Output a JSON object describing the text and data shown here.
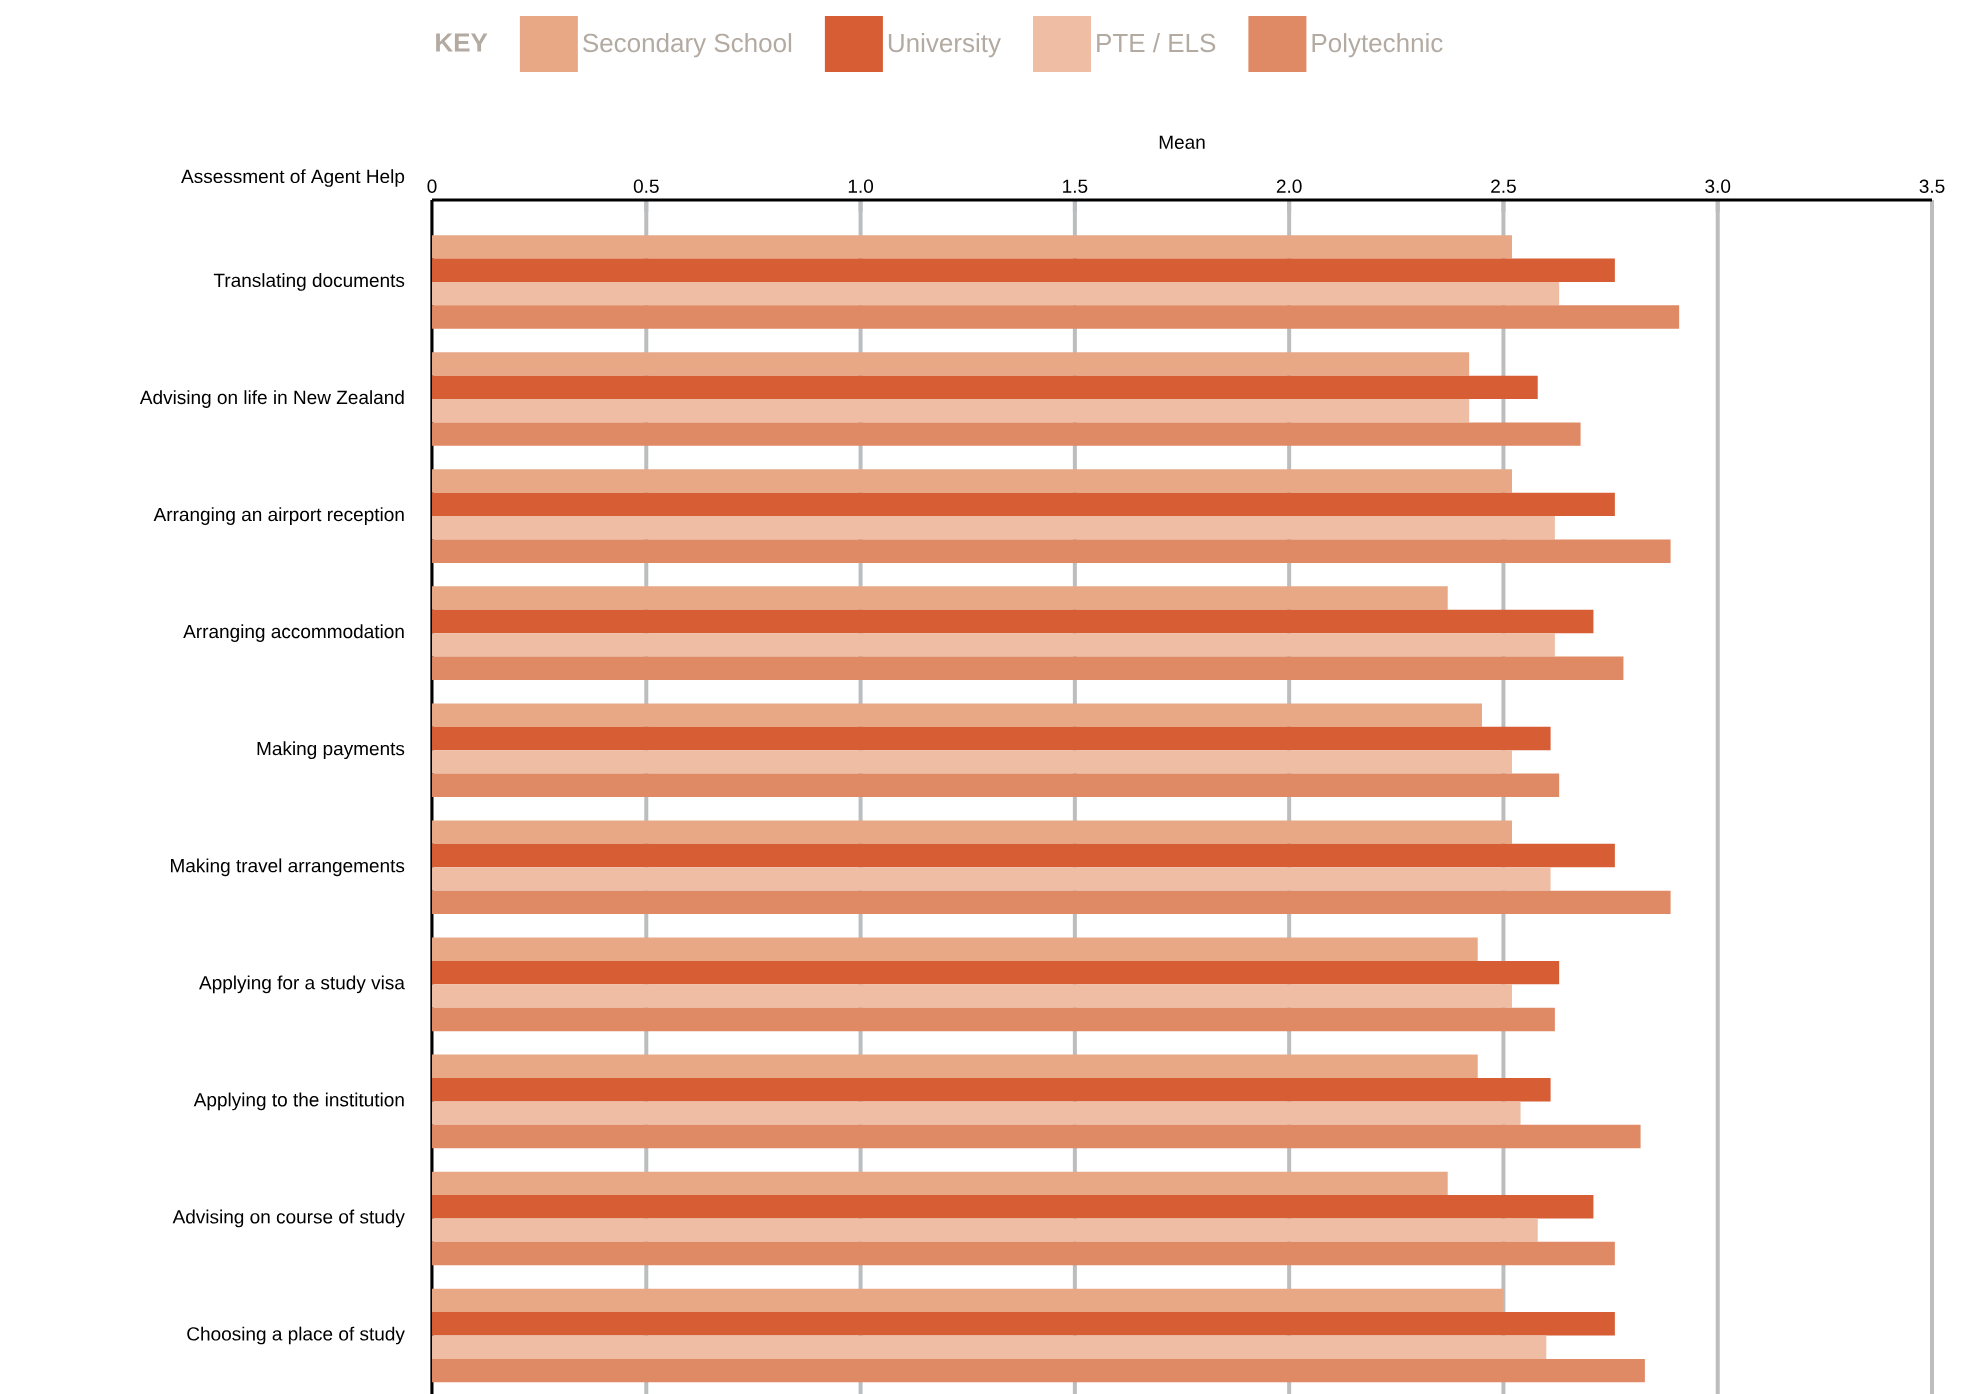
{
  "chart_data": {
    "type": "bar",
    "orientation": "horizontal",
    "xlabel": "Mean",
    "ylabel": "Assessment of Agent Help",
    "legend_title": "KEY",
    "categories": [
      "Translating documents",
      "Advising on life in New Zealand",
      "Arranging an airport reception",
      "Arranging accommodation",
      "Making payments",
      "Making travel arrangements",
      "Applying for a study visa",
      "Applying to the institution",
      "Advising on course of study",
      "Choosing a place of study"
    ],
    "series": [
      {
        "name": "Secondary School",
        "color": "#e8a886",
        "values": [
          2.52,
          2.42,
          2.52,
          2.37,
          2.45,
          2.52,
          2.44,
          2.44,
          2.37,
          2.5
        ]
      },
      {
        "name": "University",
        "color": "#d65d34",
        "values": [
          2.76,
          2.58,
          2.76,
          2.71,
          2.61,
          2.76,
          2.63,
          2.61,
          2.71,
          2.76
        ]
      },
      {
        "name": "PTE / ELS",
        "color": "#eebda4",
        "values": [
          2.63,
          2.42,
          2.62,
          2.62,
          2.52,
          2.61,
          2.52,
          2.54,
          2.58,
          2.6
        ]
      },
      {
        "name": "Polytechnic",
        "color": "#e08965",
        "values": [
          2.91,
          2.68,
          2.89,
          2.78,
          2.63,
          2.89,
          2.62,
          2.82,
          2.76,
          2.83
        ]
      }
    ],
    "xlim": [
      0,
      3.5
    ],
    "xticks": [
      0,
      0.5,
      {
        "value": 1,
        "label": "1.0"
      },
      1.5,
      {
        "value": 2,
        "label": "2.0"
      },
      2.5,
      {
        "value": 3,
        "label": "3.0"
      },
      3.5
    ],
    "grid": "x",
    "legend": "top"
  }
}
